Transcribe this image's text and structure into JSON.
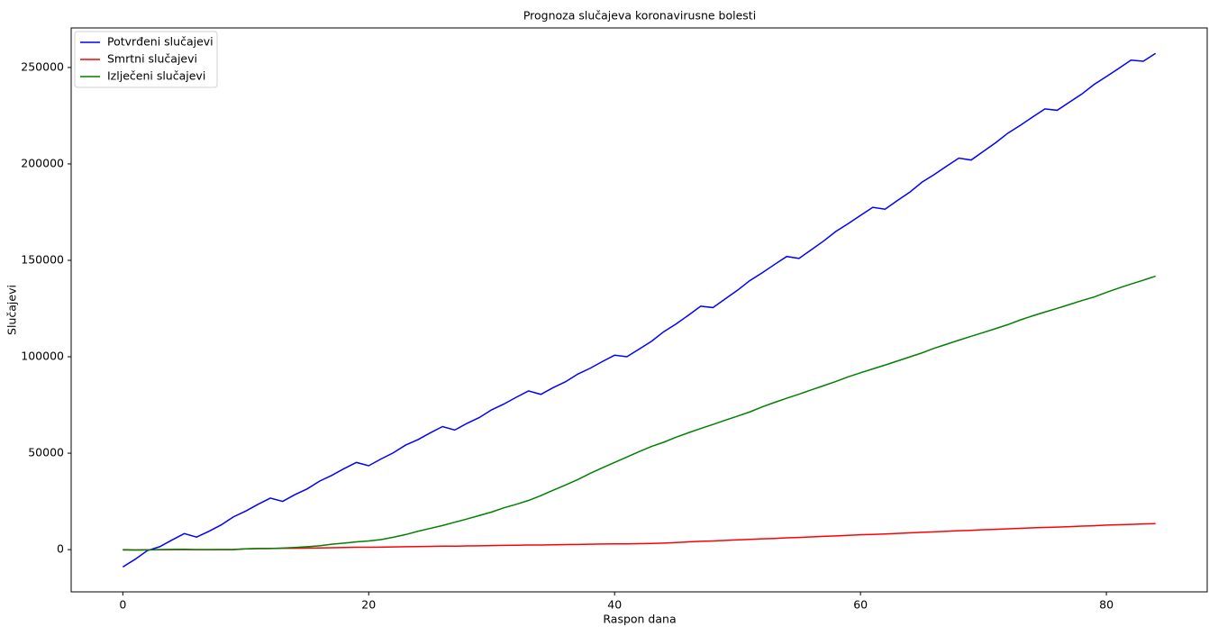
{
  "chart_data": {
    "type": "line",
    "title": "Prognoza slučajeva koronavirusne bolesti",
    "x_label": "Raspon dana",
    "y_label": "Slučajevi",
    "x": [
      0,
      1,
      2,
      3,
      4,
      5,
      6,
      7,
      8,
      9,
      10,
      11,
      12,
      13,
      14,
      15,
      16,
      17,
      18,
      19,
      20,
      21,
      22,
      23,
      24,
      25,
      26,
      27,
      28,
      29,
      30,
      31,
      32,
      33,
      34,
      35,
      36,
      37,
      38,
      39,
      40,
      41,
      42,
      43,
      44,
      45,
      46,
      47,
      48,
      49,
      50,
      51,
      52,
      53,
      54,
      55,
      56,
      57,
      58,
      59,
      60,
      61,
      62,
      63,
      64,
      65,
      66,
      67,
      68,
      69,
      70,
      71,
      72,
      73,
      74,
      75,
      76,
      77,
      78,
      79,
      80,
      81,
      82,
      83,
      84
    ],
    "series": [
      {
        "name": "Potvrđeni slučajevi",
        "color": "#0000ff",
        "values": [
          -9000,
          -5000,
          -500,
          1500,
          5000,
          8300,
          6500,
          9500,
          12800,
          17000,
          20000,
          23500,
          26700,
          25000,
          28500,
          31500,
          35500,
          38500,
          42000,
          45200,
          43500,
          47000,
          50200,
          54200,
          57000,
          60500,
          63800,
          62000,
          65500,
          68500,
          72500,
          75500,
          79000,
          82300,
          80500,
          84000,
          87000,
          91000,
          94000,
          97500,
          100800,
          100000,
          104000,
          108000,
          113000,
          117000,
          121500,
          126200,
          125500,
          130000,
          134500,
          139500,
          143500,
          147800,
          152000,
          151000,
          155500,
          160000,
          165000,
          169000,
          173300,
          177500,
          176500,
          181000,
          185300,
          190500,
          194500,
          198800,
          203000,
          202000,
          206500,
          211000,
          216000,
          220000,
          224300,
          228500,
          227800,
          232000,
          236200,
          241200,
          245300,
          249500,
          253800,
          253200,
          257300
        ]
      },
      {
        "name": "Smrtni slučajevi",
        "color": "#ff0000",
        "values": [
          -200,
          -200,
          -100,
          0,
          0,
          0,
          0,
          0,
          0,
          100,
          400,
          500,
          600,
          700,
          700,
          800,
          900,
          1000,
          1100,
          1200,
          1200,
          1300,
          1400,
          1500,
          1600,
          1700,
          1800,
          1800,
          1900,
          2000,
          2100,
          2200,
          2300,
          2400,
          2400,
          2500,
          2600,
          2700,
          2800,
          2900,
          3000,
          3000,
          3100,
          3200,
          3400,
          3700,
          4000,
          4300,
          4500,
          4800,
          5100,
          5300,
          5600,
          5800,
          6100,
          6300,
          6600,
          6900,
          7100,
          7400,
          7700,
          7900,
          8100,
          8400,
          8700,
          9000,
          9200,
          9500,
          9800,
          10000,
          10300,
          10500,
          10800,
          11000,
          11300,
          11500,
          11700,
          11900,
          12200,
          12400,
          12700,
          12900,
          13100,
          13300,
          13500
        ]
      },
      {
        "name": "Izlječeni slučajevi",
        "color": "#008000",
        "values": [
          0,
          -200,
          -100,
          0,
          100,
          200,
          0,
          0,
          50,
          0,
          400,
          600,
          600,
          800,
          1100,
          1500,
          2000,
          2800,
          3400,
          4000,
          4500,
          5200,
          6400,
          7800,
          9500,
          11000,
          12500,
          14200,
          15900,
          17700,
          19500,
          21700,
          23500,
          25500,
          28000,
          30800,
          33500,
          36300,
          39500,
          42400,
          45200,
          48000,
          50800,
          53500,
          55700,
          58300,
          60600,
          62800,
          64900,
          67100,
          69200,
          71400,
          74000,
          76300,
          78500,
          80600,
          82800,
          85000,
          87200,
          89600,
          91700,
          93700,
          95700,
          97800,
          99900,
          102000,
          104400,
          106500,
          108600,
          110600,
          112600,
          114600,
          116700,
          119100,
          121200,
          123200,
          125100,
          127100,
          129100,
          131000,
          133400,
          135600,
          137700,
          139700,
          141800
        ]
      }
    ],
    "xlim": [
      -4.2,
      88.2
    ],
    "ylim": [
      -21900,
      270500
    ],
    "xticks": [
      0,
      20,
      40,
      60,
      80
    ],
    "yticks": [
      0,
      50000,
      100000,
      150000,
      200000,
      250000
    ],
    "legend": "upper left"
  }
}
